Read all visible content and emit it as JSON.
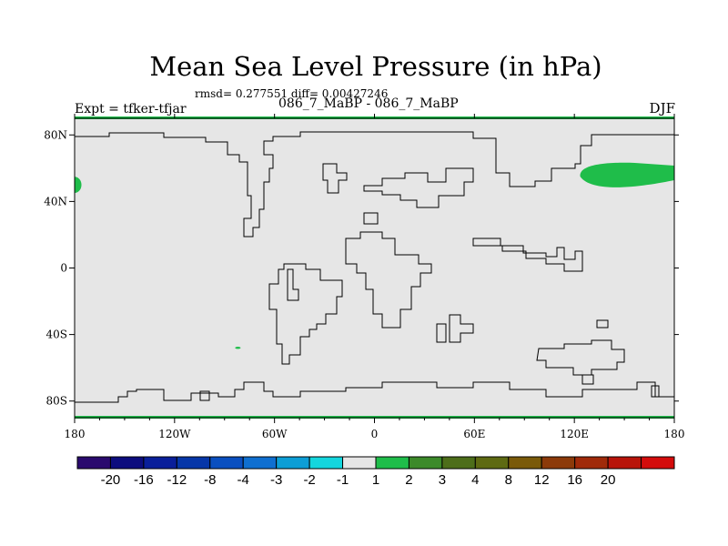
{
  "title": "Mean Sea Level Pressure (in hPa)",
  "stats": "rmsd= 0.277551 diff= 0.00427246",
  "subtitle": "086_7_MaBP - 086_7_MaBP",
  "experiment": "Expt = tfker-tfjar",
  "season": "DJF",
  "colors": {
    "background_field": "#e6e6e6",
    "highlight_field": "#1fbd4a",
    "coastline": "#000000"
  },
  "chart_data": {
    "type": "heatmap",
    "title": "Mean Sea Level Pressure (in hPa)",
    "xlim": [
      -180,
      180
    ],
    "ylim": [
      -90,
      90
    ],
    "x_ticks": [
      {
        "value": -180,
        "label": "180"
      },
      {
        "value": -120,
        "label": "120W"
      },
      {
        "value": -60,
        "label": "60W"
      },
      {
        "value": 0,
        "label": "0"
      },
      {
        "value": 60,
        "label": "60E"
      },
      {
        "value": 120,
        "label": "120E"
      },
      {
        "value": 180,
        "label": "180"
      }
    ],
    "y_ticks": [
      {
        "value": 80,
        "label": "80N"
      },
      {
        "value": 40,
        "label": "40N"
      },
      {
        "value": 0,
        "label": "0"
      },
      {
        "value": -40,
        "label": "40S"
      },
      {
        "value": -80,
        "label": "80S"
      }
    ],
    "colorbar": {
      "colors": [
        "#2a0a6e",
        "#0d0d7e",
        "#0a1f9a",
        "#0636a8",
        "#0a4fc0",
        "#0f6fd0",
        "#0c9ed6",
        "#14d6de",
        "#e6e6e6",
        "#1fbd4a",
        "#3c8a2a",
        "#4d6e1a",
        "#5e6a12",
        "#7a5a0a",
        "#8c3a0a",
        "#a02a0a",
        "#b8140a",
        "#d40c0c"
      ],
      "labels": [
        "-20",
        "-16",
        "-12",
        "-8",
        "-4",
        "-3",
        "-2",
        "-1",
        "1",
        "2",
        "3",
        "4",
        "8",
        "12",
        "16",
        "20"
      ]
    },
    "regions": [
      {
        "name": "North Pacific anomaly",
        "lon": 153,
        "lat": 55,
        "bin": "1 to 2"
      },
      {
        "name": "Western edge anomaly",
        "lon": -179,
        "lat": 50,
        "bin": "1 to 2"
      },
      {
        "name": "South Pacific speck",
        "lon": -82,
        "lat": -48,
        "bin": "1 to 2"
      },
      {
        "name": "Arctic edge",
        "lat": 90,
        "bin": "1 to 2"
      },
      {
        "name": "Antarctic edge",
        "lat": -90,
        "bin": "1 to 2"
      }
    ]
  }
}
